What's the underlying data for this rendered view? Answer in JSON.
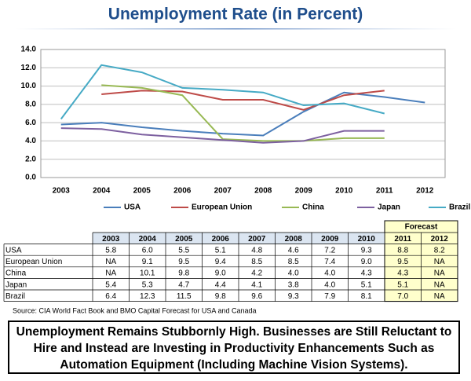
{
  "chart_data": {
    "type": "line",
    "title": "Unemployment Rate (in Percent)",
    "categories": [
      "2003",
      "2004",
      "2005",
      "2006",
      "2007",
      "2008",
      "2009",
      "2010",
      "2011",
      "2012"
    ],
    "series": [
      {
        "name": "USA",
        "color": "#4a7ebb",
        "values": [
          5.8,
          6.0,
          5.5,
          5.1,
          4.8,
          4.6,
          7.2,
          9.3,
          8.8,
          8.2
        ],
        "value_labels": [
          "5.8",
          "6.0",
          "5.5",
          "5.1",
          "4.8",
          "4.6",
          "7.2",
          "9.3",
          "8.8",
          "8.2"
        ]
      },
      {
        "name": "European Union",
        "color": "#be4b48",
        "values": [
          null,
          9.1,
          9.5,
          9.4,
          8.5,
          8.5,
          7.4,
          9.0,
          9.5,
          null
        ],
        "value_labels": [
          "NA",
          "9.1",
          "9.5",
          "9.4",
          "8.5",
          "8.5",
          "7.4",
          "9.0",
          "9.5",
          "NA"
        ]
      },
      {
        "name": "China",
        "color": "#98b954",
        "values": [
          null,
          10.1,
          9.8,
          9.0,
          4.2,
          4.0,
          4.0,
          4.3,
          4.3,
          null
        ],
        "value_labels": [
          "NA",
          "10.1",
          "9.8",
          "9.0",
          "4.2",
          "4.0",
          "4.0",
          "4.3",
          "4.3",
          "NA"
        ]
      },
      {
        "name": "Japan",
        "color": "#7d60a0",
        "values": [
          5.4,
          5.3,
          4.7,
          4.4,
          4.1,
          3.8,
          4.0,
          5.1,
          5.1,
          null
        ],
        "value_labels": [
          "5.4",
          "5.3",
          "4.7",
          "4.4",
          "4.1",
          "3.8",
          "4.0",
          "5.1",
          "5.1",
          "NA"
        ]
      },
      {
        "name": "Brazil",
        "color": "#46aac5",
        "values": [
          6.4,
          12.3,
          11.5,
          9.8,
          9.6,
          9.3,
          7.9,
          8.1,
          7.0,
          null
        ],
        "value_labels": [
          "6.4",
          "12.3",
          "11.5",
          "9.8",
          "9.6",
          "9.3",
          "7.9",
          "8.1",
          "7.0",
          "NA"
        ]
      }
    ],
    "ylim": [
      0,
      14
    ],
    "yticks": [
      {
        "value": 0,
        "label": "0.0"
      },
      {
        "value": 2,
        "label": "2.0"
      },
      {
        "value": 4,
        "label": "4.0"
      },
      {
        "value": 6,
        "label": "6.0"
      },
      {
        "value": 8,
        "label": "8.0"
      },
      {
        "value": 10,
        "label": "10.0"
      },
      {
        "value": 12,
        "label": "12.0"
      },
      {
        "value": 14,
        "label": "14.0"
      }
    ],
    "grid": true,
    "legend": "bottom"
  },
  "table": {
    "forecast_label": "Forecast"
  },
  "source": "Source: CIA World Fact Book and BMO Capital Forecast for USA and Canada",
  "caption": "Unemployment Remains Stubbornly High.  Businesses are Still Reluctant to Hire and Instead are Investing in Productivity Enhancements Such as Automation Equipment (Including Machine Vision Systems)."
}
